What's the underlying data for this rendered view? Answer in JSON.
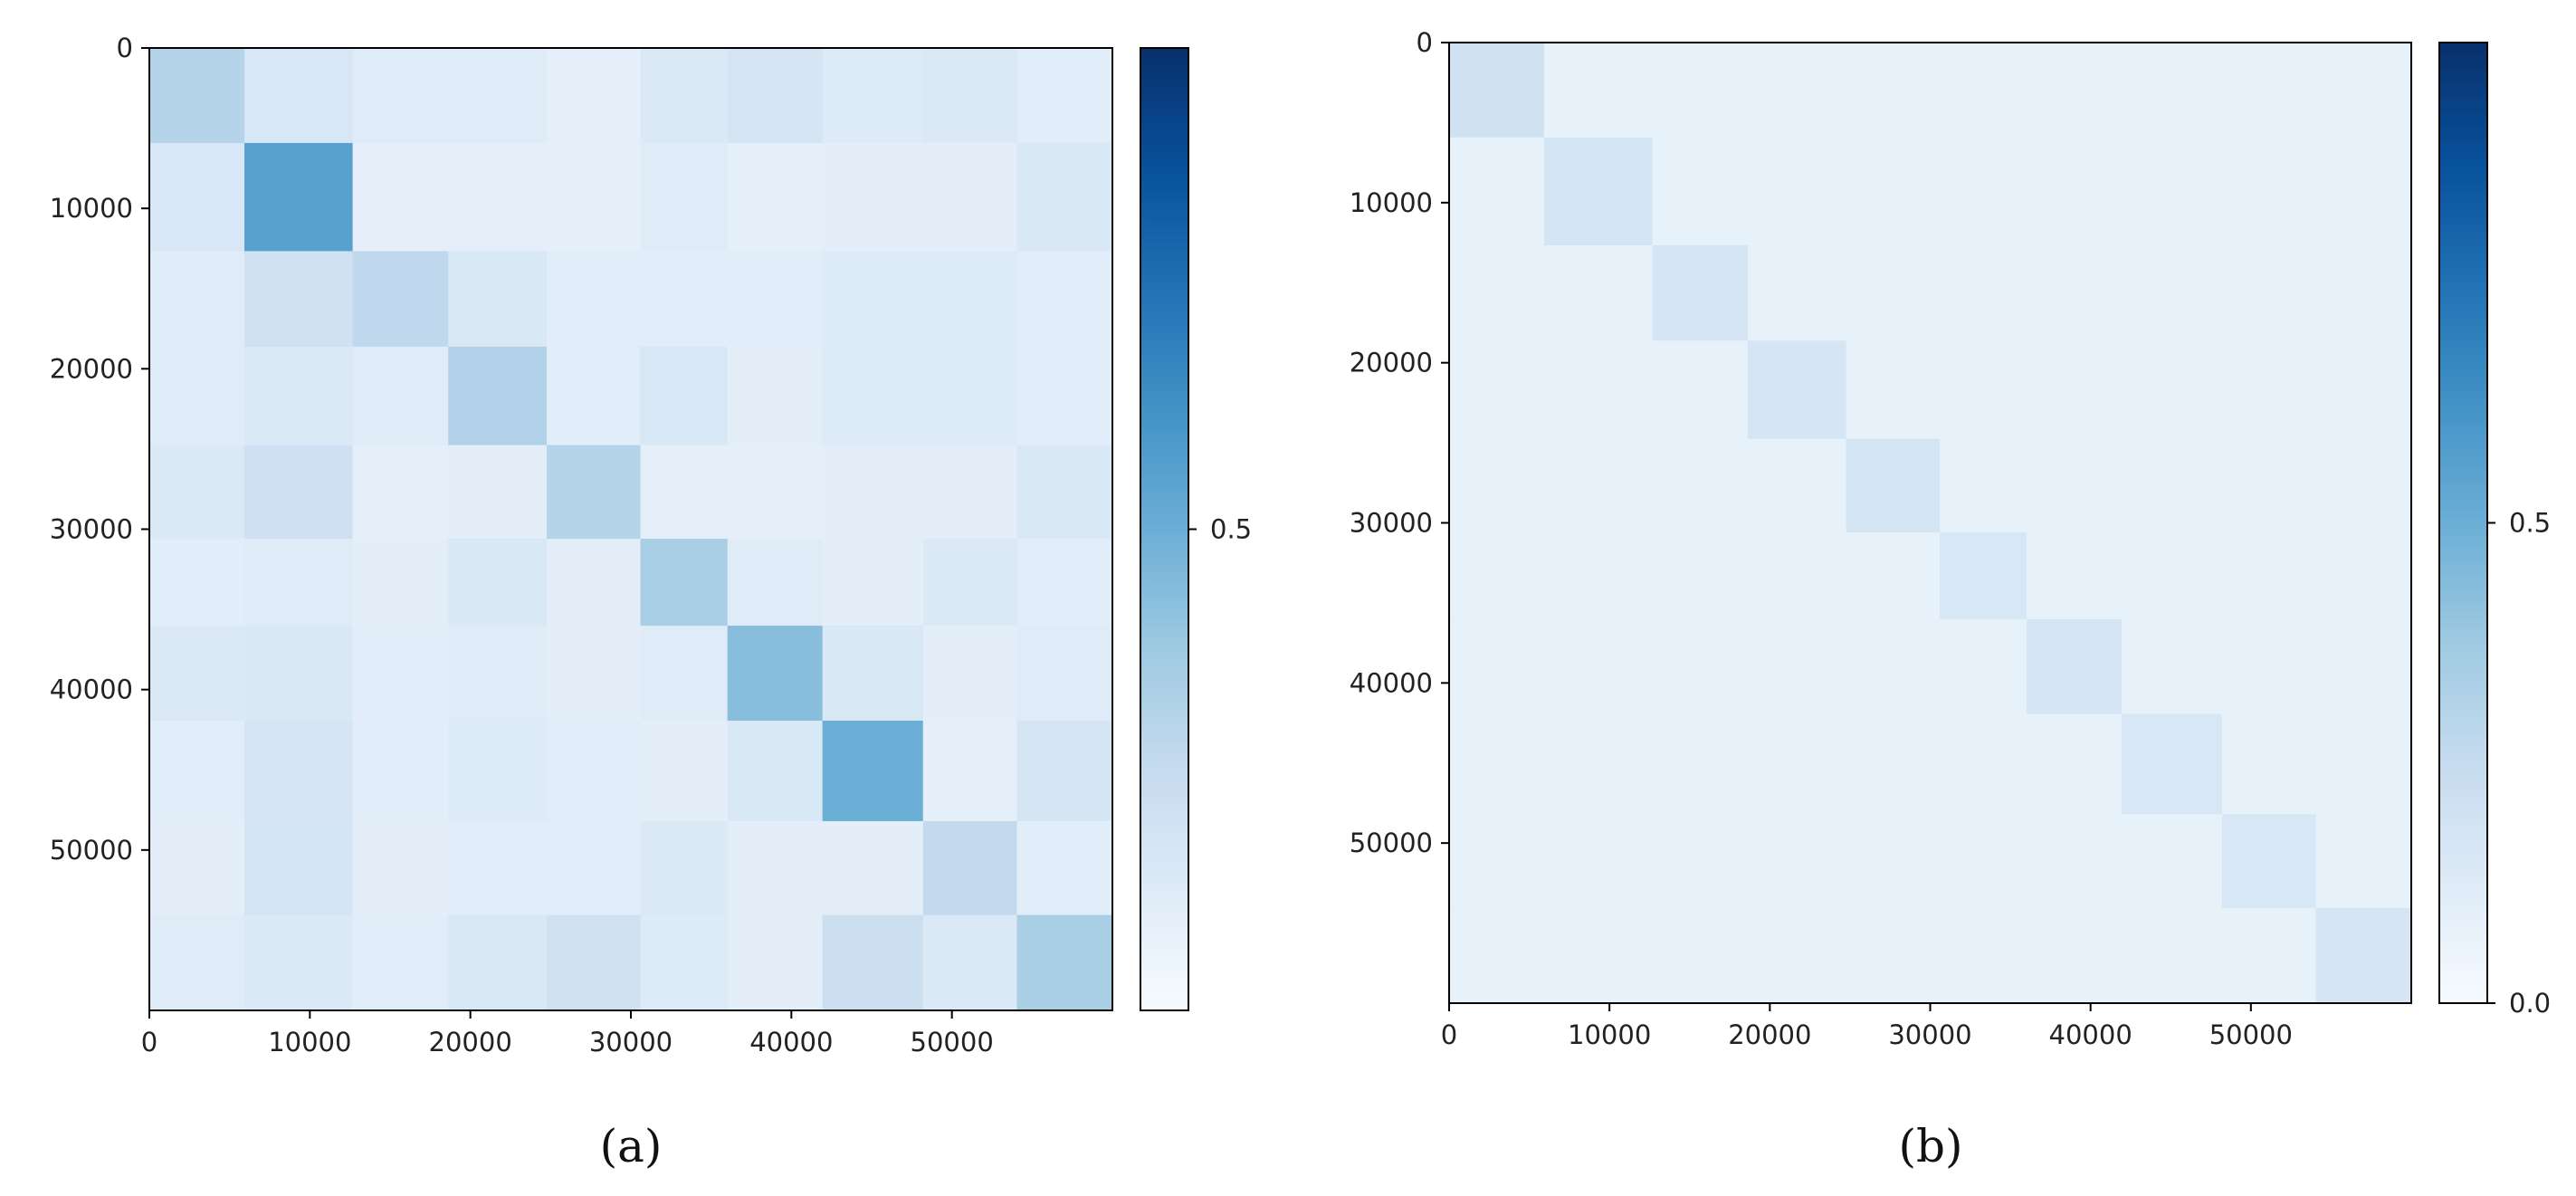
{
  "chart_data": [
    {
      "type": "heatmap",
      "panel_label": "(a)",
      "x_ticks": [
        0,
        10000,
        20000,
        30000,
        40000,
        50000
      ],
      "y_ticks": [
        0,
        10000,
        20000,
        30000,
        40000,
        50000
      ],
      "x_range": [
        0,
        60000
      ],
      "y_range": [
        0,
        60000
      ],
      "y_inverted": true,
      "colormap": "Blues",
      "colorbar_range": [
        0,
        1
      ],
      "colorbar_ticks": [
        0.5
      ],
      "block_boundaries": [
        0,
        5923,
        12665,
        18623,
        24754,
        30596,
        36017,
        41935,
        48200,
        54051,
        60000
      ],
      "block_values": [
        [
          0.3,
          0.16,
          0.12,
          0.12,
          0.09,
          0.14,
          0.17,
          0.13,
          0.14,
          0.11
        ],
        [
          0.16,
          0.56,
          0.09,
          0.09,
          0.09,
          0.12,
          0.09,
          0.1,
          0.1,
          0.15
        ],
        [
          0.12,
          0.2,
          0.27,
          0.15,
          0.11,
          0.11,
          0.11,
          0.13,
          0.13,
          0.11
        ],
        [
          0.12,
          0.14,
          0.12,
          0.32,
          0.11,
          0.16,
          0.1,
          0.13,
          0.13,
          0.11
        ],
        [
          0.14,
          0.21,
          0.09,
          0.1,
          0.3,
          0.09,
          0.09,
          0.1,
          0.1,
          0.15
        ],
        [
          0.11,
          0.12,
          0.1,
          0.15,
          0.1,
          0.34,
          0.12,
          0.1,
          0.14,
          0.11
        ],
        [
          0.14,
          0.15,
          0.11,
          0.12,
          0.1,
          0.12,
          0.43,
          0.15,
          0.1,
          0.12
        ],
        [
          0.11,
          0.17,
          0.11,
          0.13,
          0.11,
          0.1,
          0.15,
          0.5,
          0.09,
          0.17
        ],
        [
          0.1,
          0.18,
          0.1,
          0.11,
          0.11,
          0.14,
          0.1,
          0.1,
          0.26,
          0.11
        ],
        [
          0.12,
          0.14,
          0.11,
          0.15,
          0.2,
          0.13,
          0.1,
          0.22,
          0.14,
          0.34
        ]
      ]
    },
    {
      "type": "heatmap",
      "panel_label": "(b)",
      "x_ticks": [
        0,
        10000,
        20000,
        30000,
        40000,
        50000
      ],
      "y_ticks": [
        0,
        10000,
        20000,
        30000,
        40000,
        50000
      ],
      "x_range": [
        0,
        60000
      ],
      "y_range": [
        0,
        60000
      ],
      "y_inverted": true,
      "colormap": "Blues",
      "colorbar_range": [
        0.0,
        1.0
      ],
      "colorbar_ticks": [
        0.0,
        0.5
      ],
      "block_boundaries": [
        0,
        5923,
        12665,
        18623,
        24754,
        30596,
        36017,
        41935,
        48200,
        54051,
        60000
      ],
      "off_diagonal_value": 0.08,
      "diagonal_values": [
        0.2,
        0.18,
        0.17,
        0.17,
        0.18,
        0.16,
        0.17,
        0.16,
        0.16,
        0.17
      ]
    }
  ]
}
